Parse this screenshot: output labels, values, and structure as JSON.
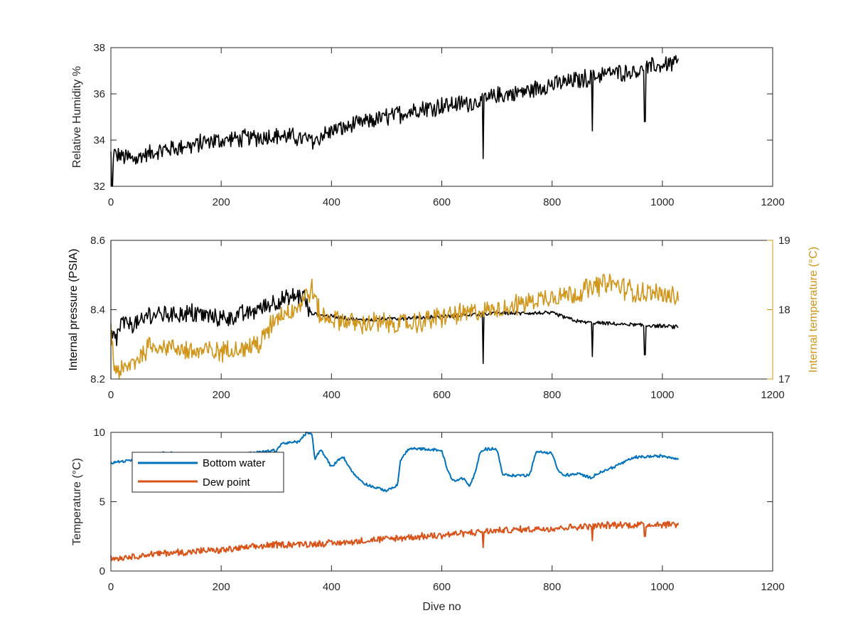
{
  "chart_data": [
    {
      "type": "line",
      "panel": "top",
      "xlabel": "",
      "ylabel": "Relative Humidity %",
      "xlim": [
        0,
        1200
      ],
      "ylim": [
        32,
        38
      ],
      "xticks": [
        0,
        200,
        400,
        600,
        800,
        1000,
        1200
      ],
      "yticks": [
        32,
        34,
        36,
        38
      ],
      "grid": false,
      "series": [
        {
          "color": "#000000",
          "trend": {
            "x": [
              0,
              40,
              100,
              200,
              300,
              370,
              400,
              450,
              500,
              550,
              600,
              650,
              700,
              750,
              800,
              850,
              900,
              950,
              1030
            ],
            "y": [
              33.4,
              33.2,
              33.6,
              34.0,
              34.2,
              34.0,
              34.4,
              34.7,
              35.0,
              35.3,
              35.5,
              35.6,
              35.9,
              36.1,
              36.4,
              36.6,
              36.9,
              37.0,
              37.4
            ]
          },
          "noise_amplitude": 0.55,
          "spikes": [
            {
              "x": 675,
              "y": 33.2
            },
            {
              "x": 873,
              "y": 34.4
            },
            {
              "x": 968,
              "y": 34.8
            },
            {
              "x": 2,
              "y": 32.0
            }
          ]
        }
      ]
    },
    {
      "type": "line",
      "panel": "middle",
      "xlabel": "",
      "ylabel": "Internal pressure (PSIA)",
      "y2label": "Internal temperature (°C)",
      "xlim": [
        0,
        1200
      ],
      "ylim": [
        8.2,
        8.6
      ],
      "y2lim": [
        17,
        19
      ],
      "xticks": [
        0,
        200,
        400,
        600,
        800,
        1000,
        1200
      ],
      "yticks": [
        8.2,
        8.4,
        8.6
      ],
      "y2ticks": [
        17,
        18,
        19
      ],
      "grid": false,
      "series": [
        {
          "axis": "left",
          "color": "#000000",
          "trend": {
            "x": [
              0,
              10,
              20,
              60,
              62,
              150,
              200,
              250,
              300,
              350,
              360,
              380,
              450,
              600,
              700,
              800,
              850,
              900,
              1030
            ],
            "y": [
              8.32,
              8.32,
              8.36,
              8.36,
              8.385,
              8.39,
              8.375,
              8.39,
              8.425,
              8.44,
              8.39,
              8.385,
              8.37,
              8.38,
              8.39,
              8.39,
              8.365,
              8.36,
              8.35
            ]
          },
          "noise_amplitude": 0.04,
          "noise_until": 360,
          "spikes": [
            {
              "x": 675,
              "y": 8.245
            },
            {
              "x": 873,
              "y": 8.265
            },
            {
              "x": 968,
              "y": 8.27
            }
          ]
        },
        {
          "axis": "right",
          "color": "#D09519",
          "trend": {
            "x": [
              0,
              5,
              20,
              50,
              70,
              150,
              200,
              270,
              300,
              340,
              365,
              380,
              450,
              550,
              600,
              700,
              800,
              850,
              900,
              950,
              1030
            ],
            "y": [
              17.8,
              17.15,
              17.1,
              17.3,
              17.5,
              17.4,
              17.4,
              17.5,
              17.9,
              18.05,
              18.3,
              17.9,
              17.8,
              17.8,
              17.9,
              18.0,
              18.2,
              18.25,
              18.4,
              18.25,
              18.2
            ]
          },
          "noise_amplitude": 0.22,
          "spikes": []
        }
      ]
    },
    {
      "type": "line",
      "panel": "bottom",
      "xlabel": "Dive no",
      "ylabel": "Temperature (°C)",
      "xlim": [
        0,
        1200
      ],
      "ylim": [
        0,
        10
      ],
      "xticks": [
        0,
        200,
        400,
        600,
        800,
        1000,
        1200
      ],
      "yticks": [
        0,
        5,
        10
      ],
      "grid": false,
      "legend": "top-left",
      "series": [
        {
          "name": "Bottom water",
          "color": "#0072BD",
          "trend": {
            "x": [
              0,
              40,
              60,
              100,
              150,
              200,
              250,
              300,
              310,
              340,
              355,
              365,
              370,
              380,
              400,
              420,
              440,
              460,
              480,
              500,
              520,
              525,
              540,
              560,
              600,
              610,
              620,
              640,
              650,
              660,
              670,
              680,
              700,
              710,
              720,
              750,
              760,
              770,
              780,
              800,
              810,
              820,
              850,
              870,
              880,
              900,
              950,
              1000,
              1030
            ],
            "y": [
              7.8,
              8.0,
              8.4,
              8.5,
              8.4,
              8.3,
              8.5,
              8.7,
              9.2,
              9.3,
              10.0,
              9.8,
              8.0,
              8.8,
              7.5,
              8.3,
              7.0,
              6.3,
              6.0,
              5.8,
              6.2,
              8.0,
              8.8,
              8.8,
              8.7,
              7.3,
              6.5,
              6.7,
              6.1,
              7.0,
              8.6,
              8.8,
              8.8,
              7.0,
              6.9,
              6.9,
              7.0,
              8.5,
              8.6,
              8.5,
              7.3,
              6.9,
              7.0,
              6.7,
              7.0,
              7.3,
              8.2,
              8.3,
              8.1
            ]
          },
          "noise_amplitude": 0.15,
          "spikes": []
        },
        {
          "name": "Dew point",
          "color": "#D95319",
          "trend": {
            "x": [
              0,
              100,
              200,
              300,
              400,
              500,
              600,
              700,
              800,
              900,
              1030
            ],
            "y": [
              0.9,
              1.3,
              1.5,
              1.9,
              2.0,
              2.3,
              2.6,
              2.9,
              3.1,
              3.3,
              3.4
            ]
          },
          "noise_amplitude": 0.35,
          "spikes": [
            {
              "x": 675,
              "y": 1.7
            },
            {
              "x": 873,
              "y": 2.2
            },
            {
              "x": 968,
              "y": 2.5
            }
          ]
        }
      ]
    }
  ]
}
